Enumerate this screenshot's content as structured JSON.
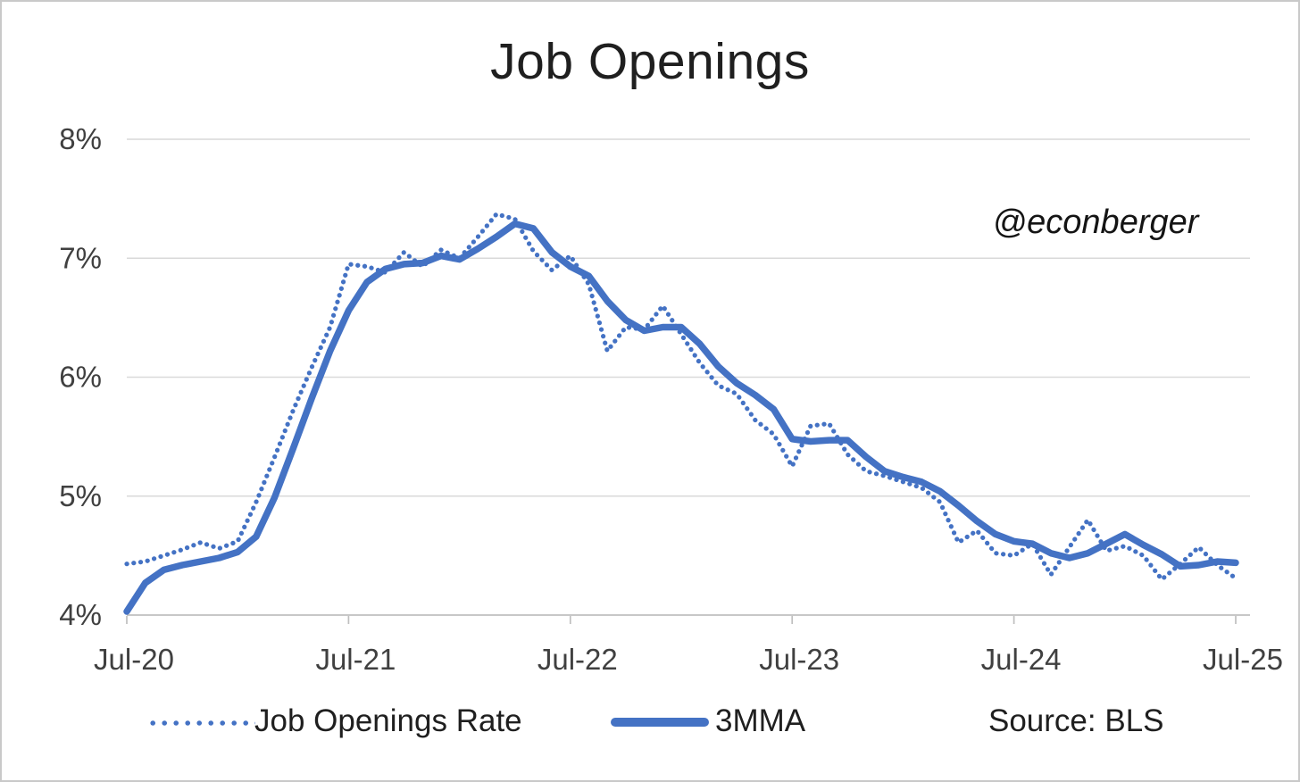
{
  "chart_data": {
    "type": "line",
    "title": "Job Openings",
    "watermark": "@econberger",
    "source_label": "Source: BLS",
    "accent_color": "#4472C4",
    "grid_color": "#D9D9D9",
    "axis_color": "#BFBFBF",
    "grid": true,
    "legend_position": "bottom",
    "ylim": [
      4,
      8
    ],
    "y_ticks": [
      {
        "label": "4%",
        "value": 4
      },
      {
        "label": "5%",
        "value": 5
      },
      {
        "label": "6%",
        "value": 6
      },
      {
        "label": "7%",
        "value": 7
      },
      {
        "label": "8%",
        "value": 8
      }
    ],
    "x_ticks": [
      {
        "label": "Jul-20",
        "month": 0
      },
      {
        "label": "Jul-21",
        "month": 12
      },
      {
        "label": "Jul-22",
        "month": 24
      },
      {
        "label": "Jul-23",
        "month": 36
      },
      {
        "label": "Jul-24",
        "month": 48
      },
      {
        "label": "Jul-25",
        "month": 60
      }
    ],
    "x_start_label": "Jul-20",
    "x_end_label": "Jul-25",
    "months_span": 60,
    "series": [
      {
        "name": "Job Openings Rate",
        "style": "dotted",
        "values": [
          4.43,
          4.45,
          4.5,
          4.55,
          4.61,
          4.56,
          4.62,
          4.95,
          5.33,
          5.72,
          6.08,
          6.42,
          6.95,
          6.93,
          6.88,
          7.05,
          6.93,
          7.07,
          7.0,
          7.18,
          7.37,
          7.33,
          7.06,
          6.9,
          7.02,
          6.78,
          6.22,
          6.42,
          6.4,
          6.6,
          6.36,
          6.12,
          5.93,
          5.86,
          5.64,
          5.52,
          5.25,
          5.59,
          5.61,
          5.35,
          5.21,
          5.17,
          5.12,
          5.07,
          4.95,
          4.61,
          4.71,
          4.52,
          4.5,
          4.6,
          4.34,
          4.57,
          4.8,
          4.54,
          4.58,
          4.5,
          4.3,
          4.43,
          4.57,
          4.42,
          4.31
        ]
      },
      {
        "name": "3MMA",
        "style": "solid",
        "values": [
          4.03,
          4.27,
          4.38,
          4.42,
          4.45,
          4.48,
          4.53,
          4.66,
          4.99,
          5.4,
          5.82,
          6.22,
          6.56,
          6.8,
          6.91,
          6.95,
          6.96,
          7.02,
          6.99,
          7.08,
          7.18,
          7.29,
          7.25,
          7.05,
          6.93,
          6.85,
          6.64,
          6.48,
          6.39,
          6.42,
          6.42,
          6.28,
          6.09,
          5.95,
          5.85,
          5.73,
          5.48,
          5.46,
          5.47,
          5.47,
          5.33,
          5.21,
          5.16,
          5.12,
          5.04,
          4.92,
          4.79,
          4.68,
          4.62,
          4.6,
          4.52,
          4.48,
          4.52,
          4.6,
          4.68,
          4.59,
          4.51,
          4.41,
          4.42,
          4.45,
          4.44
        ]
      }
    ]
  }
}
